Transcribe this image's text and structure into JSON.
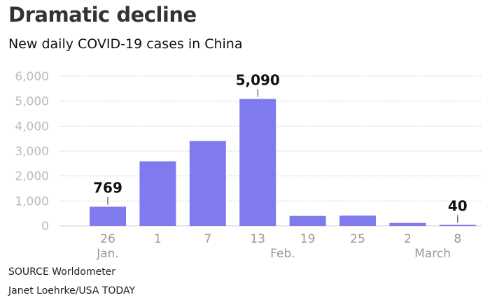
{
  "header": {
    "title": "Dramatic decline",
    "subtitle": "New daily COVID-19 cases in China"
  },
  "footer": {
    "source": "SOURCE Worldometer",
    "credit": "Janet Loehrke/USA TODAY"
  },
  "colors": {
    "bar": "#7f7bef",
    "grid": "#cccccc",
    "tick_label": "#bbbbbb",
    "axis_label": "#999999"
  },
  "chart_data": {
    "type": "bar",
    "title": "Dramatic decline",
    "subtitle": "New daily COVID-19 cases in China",
    "xlabel": "",
    "ylabel": "",
    "ylim": [
      0,
      6000
    ],
    "yticks": [
      0,
      1000,
      2000,
      3000,
      4000,
      5000,
      6000
    ],
    "ytick_labels": [
      "0",
      "1,000",
      "2,000",
      "3,000",
      "4,000",
      "5,000",
      "6,000"
    ],
    "categories": [
      "26",
      "1",
      "7",
      "13",
      "19",
      "25",
      "2",
      "8"
    ],
    "month_labels": [
      {
        "text": "Jan.",
        "category_index": 0
      },
      {
        "text": "Feb.",
        "category_index": 3.5
      },
      {
        "text": "March",
        "category_index": 6.5
      }
    ],
    "values": [
      769,
      2590,
      3400,
      5090,
      400,
      410,
      120,
      40
    ],
    "annotations": [
      {
        "category_index": 0,
        "label": "769"
      },
      {
        "category_index": 3,
        "label": "5,090"
      },
      {
        "category_index": 7,
        "label": "40"
      }
    ],
    "grid": true,
    "legend": "none"
  }
}
